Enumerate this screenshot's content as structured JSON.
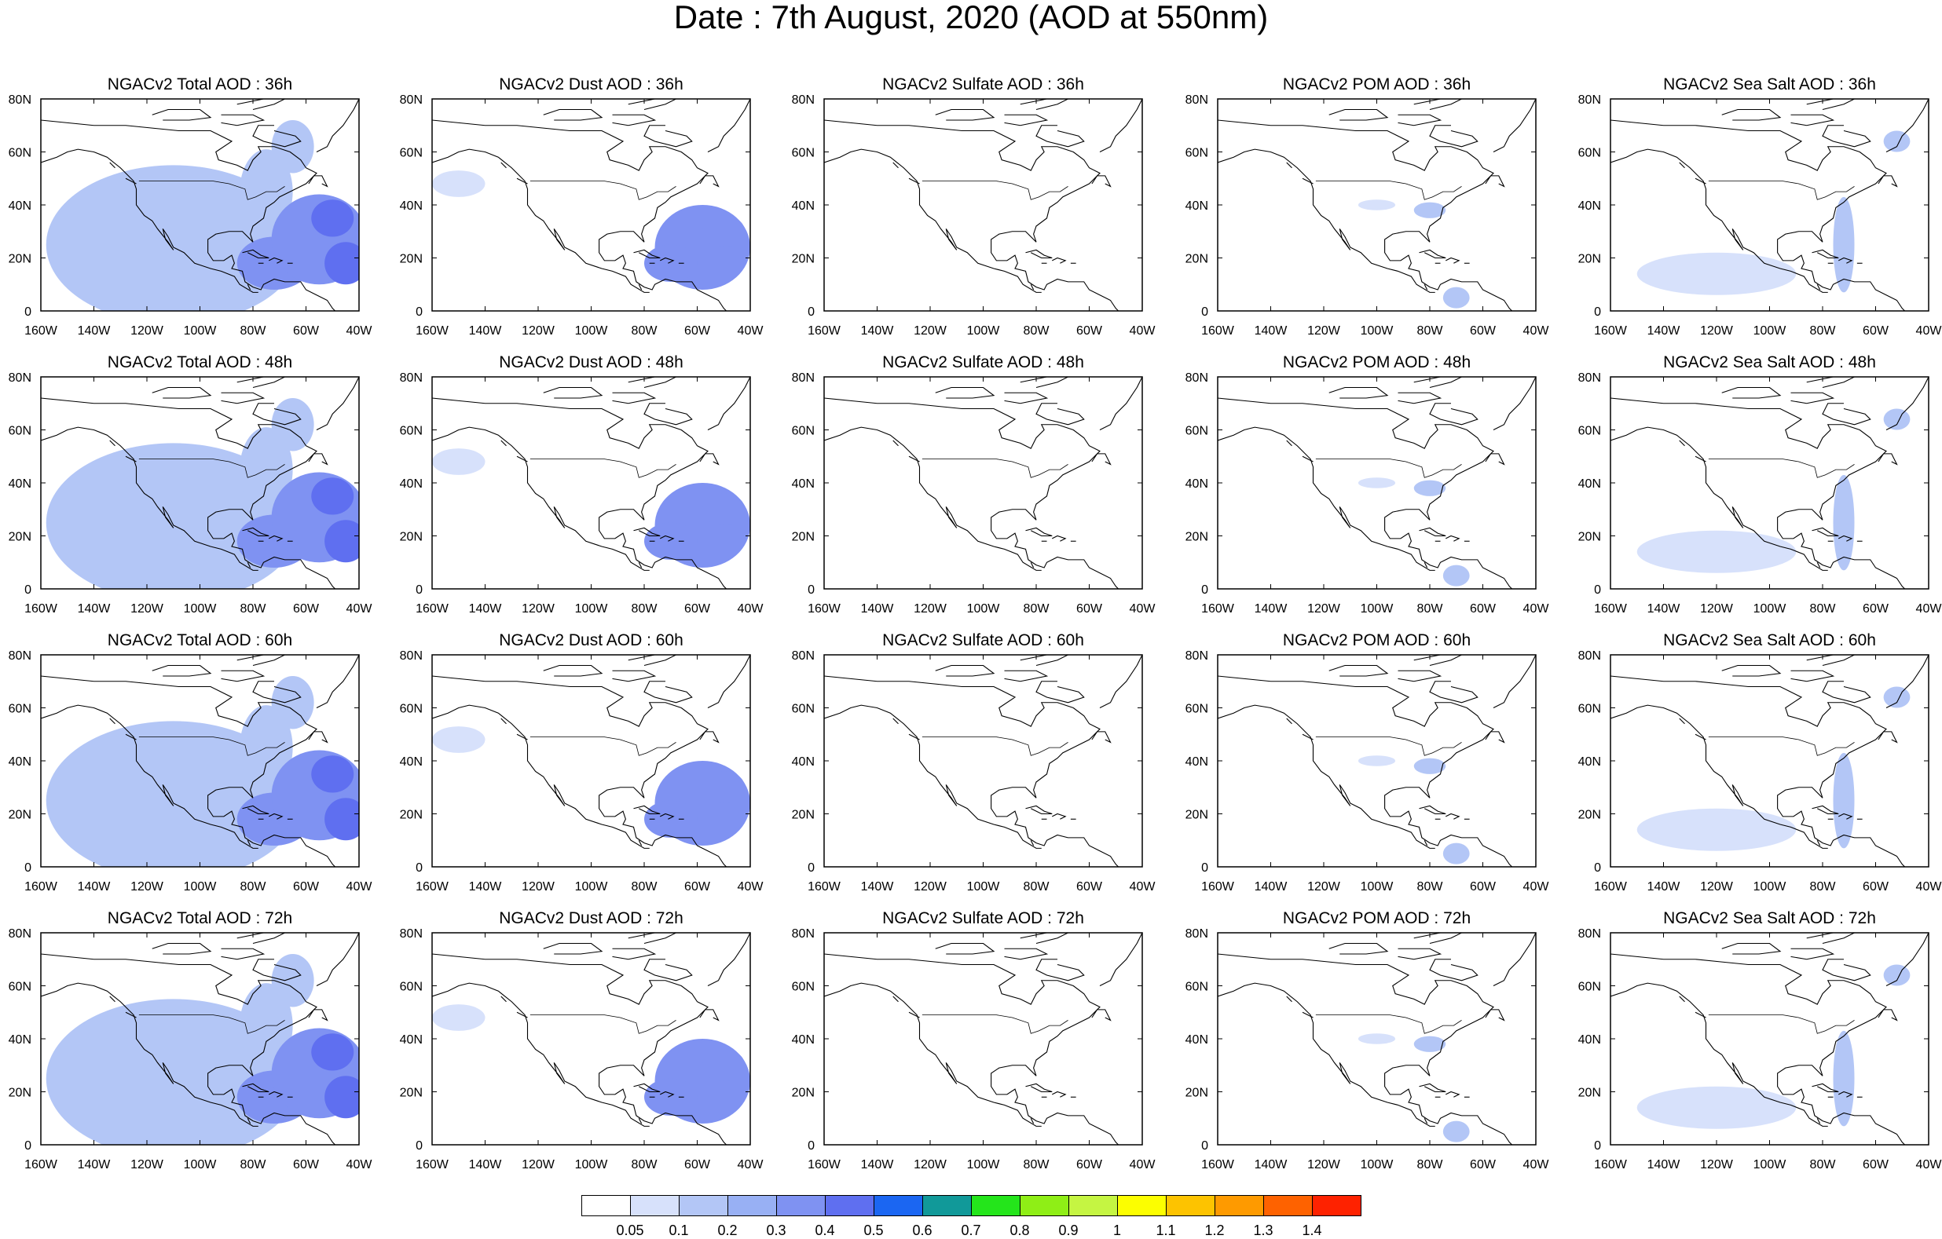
{
  "title": "Date : 7th August, 2020 (AOD at 550nm)",
  "axes": {
    "lon_ticks": [
      "160W",
      "140W",
      "120W",
      "100W",
      "80W",
      "60W",
      "40W"
    ],
    "lat_ticks": [
      "0",
      "20N",
      "40N",
      "60N",
      "80N"
    ],
    "lon_range_deg": [
      -160,
      -40
    ],
    "lat_range_deg": [
      0,
      80
    ]
  },
  "panels": [
    {
      "title": "NGACv2 Total AOD : 36h",
      "species": "total",
      "forecast_hour": 36
    },
    {
      "title": "NGACv2 Dust AOD : 36h",
      "species": "dust",
      "forecast_hour": 36
    },
    {
      "title": "NGACv2 Sulfate AOD : 36h",
      "species": "sulfate",
      "forecast_hour": 36
    },
    {
      "title": "NGACv2 POM AOD : 36h",
      "species": "pom",
      "forecast_hour": 36
    },
    {
      "title": "NGACv2 Sea Salt AOD : 36h",
      "species": "seasalt",
      "forecast_hour": 36
    },
    {
      "title": "NGACv2 Total AOD : 48h",
      "species": "total",
      "forecast_hour": 48
    },
    {
      "title": "NGACv2 Dust AOD : 48h",
      "species": "dust",
      "forecast_hour": 48
    },
    {
      "title": "NGACv2 Sulfate AOD : 48h",
      "species": "sulfate",
      "forecast_hour": 48
    },
    {
      "title": "NGACv2 POM AOD : 48h",
      "species": "pom",
      "forecast_hour": 48
    },
    {
      "title": "NGACv2 Sea Salt AOD : 48h",
      "species": "seasalt",
      "forecast_hour": 48
    },
    {
      "title": "NGACv2 Total AOD : 60h",
      "species": "total",
      "forecast_hour": 60
    },
    {
      "title": "NGACv2 Dust AOD : 60h",
      "species": "dust",
      "forecast_hour": 60
    },
    {
      "title": "NGACv2 Sulfate AOD : 60h",
      "species": "sulfate",
      "forecast_hour": 60
    },
    {
      "title": "NGACv2 POM AOD : 60h",
      "species": "pom",
      "forecast_hour": 60
    },
    {
      "title": "NGACv2 Sea Salt AOD : 60h",
      "species": "seasalt",
      "forecast_hour": 60
    },
    {
      "title": "NGACv2 Total AOD : 72h",
      "species": "total",
      "forecast_hour": 72
    },
    {
      "title": "NGACv2 Dust AOD : 72h",
      "species": "dust",
      "forecast_hour": 72
    },
    {
      "title": "NGACv2 Sulfate AOD : 72h",
      "species": "sulfate",
      "forecast_hour": 72
    },
    {
      "title": "NGACv2 POM AOD : 72h",
      "species": "pom",
      "forecast_hour": 72
    },
    {
      "title": "NGACv2 Sea Salt  AOD : 72h",
      "species": "seasalt",
      "forecast_hour": 72
    }
  ],
  "colorbar": {
    "labels": [
      "0.05",
      "0.1",
      "0.2",
      "0.3",
      "0.4",
      "0.5",
      "0.6",
      "0.7",
      "0.8",
      "0.9",
      "1",
      "1.1",
      "1.2",
      "1.3",
      "1.4"
    ],
    "colors": [
      "#ffffff",
      "#d7e1fb",
      "#b3c6f6",
      "#98b0f4",
      "#7f92f2",
      "#5f6ff0",
      "#1b66f2",
      "#119999",
      "#24e51b",
      "#8fee16",
      "#c5f542",
      "#fcfe00",
      "#fdc300",
      "#fe9a00",
      "#fe6200",
      "#fe2200"
    ]
  },
  "aod_fields": {
    "total": [
      {
        "lon": -55,
        "lat": 27,
        "rlon": 18,
        "rlat": 17,
        "aod": 0.35
      },
      {
        "lon": -72,
        "lat": 18,
        "rlon": 14,
        "rlat": 10,
        "aod": 0.3
      },
      {
        "lon": -50,
        "lat": 35,
        "rlon": 8,
        "rlat": 7,
        "aod": 0.4
      },
      {
        "lon": -45,
        "lat": 18,
        "rlon": 8,
        "rlat": 8,
        "aod": 0.4
      },
      {
        "lon": -110,
        "lat": 25,
        "rlon": 48,
        "rlat": 30,
        "aod": 0.12
      },
      {
        "lon": -75,
        "lat": 45,
        "rlon": 10,
        "rlat": 16,
        "aod": 0.15
      },
      {
        "lon": -65,
        "lat": 62,
        "rlon": 8,
        "rlat": 10,
        "aod": 0.12
      }
    ],
    "dust": [
      {
        "lon": -58,
        "lat": 24,
        "rlon": 18,
        "rlat": 16,
        "aod": 0.3
      },
      {
        "lon": -70,
        "lat": 18,
        "rlon": 10,
        "rlat": 7,
        "aod": 0.35
      },
      {
        "lon": -50,
        "lat": 30,
        "rlon": 8,
        "rlat": 6,
        "aod": 0.35
      },
      {
        "lon": -150,
        "lat": 48,
        "rlon": 10,
        "rlat": 5,
        "aod": 0.08
      }
    ],
    "sulfate": [],
    "pom": [
      {
        "lon": -80,
        "lat": 38,
        "rlon": 6,
        "rlat": 3,
        "aod": 0.1
      },
      {
        "lon": -100,
        "lat": 40,
        "rlon": 7,
        "rlat": 2,
        "aod": 0.08
      },
      {
        "lon": -70,
        "lat": 5,
        "rlon": 5,
        "rlat": 4,
        "aod": 0.1
      }
    ],
    "seasalt": [
      {
        "lon": -120,
        "lat": 14,
        "rlon": 30,
        "rlat": 8,
        "aod": 0.08
      },
      {
        "lon": -72,
        "lat": 25,
        "rlon": 4,
        "rlat": 18,
        "aod": 0.1
      },
      {
        "lon": -52,
        "lat": 64,
        "rlon": 5,
        "rlat": 4,
        "aod": 0.1
      }
    ]
  }
}
